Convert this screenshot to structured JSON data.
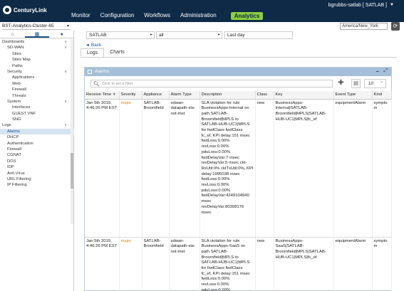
{
  "header": {
    "brand": "CenturyLink",
    "nav": [
      "Monitor",
      "Configuration",
      "Workflows",
      "Administration"
    ],
    "nav_active": "Analytics",
    "user": "bgrubbs-satlab [ SATLAB ]",
    "accent_color": "#8ccd3f",
    "bar_color": "#0f2a47"
  },
  "cluster": "BST-Analytics-Cluster-65",
  "timezone": "America/New_York",
  "sidebar": {
    "tabs": [
      "home-icon",
      "devices-icon",
      "user-icon"
    ],
    "items": [
      {
        "label": "Dashboards",
        "kind": "group",
        "caret": "∨"
      },
      {
        "label": "SD-WAN",
        "kind": "level2",
        "caret": "∨"
      },
      {
        "label": "Sites",
        "kind": "sub"
      },
      {
        "label": "Sites Map",
        "kind": "sub"
      },
      {
        "label": "Paths",
        "kind": "sub"
      },
      {
        "label": "Security",
        "kind": "level2",
        "caret": "∨"
      },
      {
        "label": "Applications",
        "kind": "sub"
      },
      {
        "label": "Web",
        "kind": "sub"
      },
      {
        "label": "Firewall",
        "kind": "sub"
      },
      {
        "label": "Threats",
        "kind": "sub"
      },
      {
        "label": "System",
        "kind": "level2",
        "caret": "∨"
      },
      {
        "label": "Interfaces",
        "kind": "sub"
      },
      {
        "label": "GUEST VNF",
        "kind": "sub"
      },
      {
        "label": "SNG",
        "kind": "sub"
      },
      {
        "label": "Logs",
        "kind": "group",
        "caret": "∨"
      },
      {
        "label": "Alarms",
        "kind": "level2",
        "selected": true
      },
      {
        "label": "DHCP",
        "kind": "level2"
      },
      {
        "label": "Authentication",
        "kind": "level2"
      },
      {
        "label": "Firewall",
        "kind": "level2"
      },
      {
        "label": "CGNAT",
        "kind": "level2"
      },
      {
        "label": "DOS",
        "kind": "level2"
      },
      {
        "label": "IDP",
        "kind": "level2"
      },
      {
        "label": "Anti Virus",
        "kind": "level2"
      },
      {
        "label": "URL Filtering",
        "kind": "level2"
      },
      {
        "label": "IP Filtering",
        "kind": "level2"
      }
    ]
  },
  "filters": {
    "tenant": "SATLAB",
    "scope": "all",
    "range": "Last day"
  },
  "back_label": "Back",
  "tabs": [
    "Logs",
    "Charts"
  ],
  "panel": {
    "title": "Alarms",
    "search_placeholder": "Click to set a filter",
    "page_size": "10"
  },
  "table": {
    "columns": [
      "Receive Time",
      "Severity",
      "Appliance",
      "Alarm Type",
      "Description",
      "Class",
      "Key",
      "Event Type",
      "Kind"
    ],
    "rows": [
      {
        "receive_time": "Jan 5th 2019, 4:46:26 PM EST",
        "severity": "major",
        "appliance": "SATLAB-Broomfield",
        "alarm_type": "sdwan-datapath-sla-not-met",
        "description": "SLA violation for rule BusinessApps-Internal on path SATLAB-Broomfield|MPLS to SATLAB-HUB-UC1|MPLS for fwdClass fwdClass fc_ef, KPI delay:151 msec fwdLoss:0.00% revLoss:0.00% pduLoss:0.00% fwdDelayVar:7 msec revDelayVar:5 msec ckt­RxUtil:0% ckt­TxUtil:0%, KPI delay:1995038 msec fwdLoss:0.00% revLoss:0.00% pduLoss:0.00% fwdDelayVar:4249104940 msec revDelayVar:80398176 msec",
        "class": "new",
        "key": "BusinessApps-Internal|SATLAB-Broomfield|MPLS|SATLAB-HUB-UC1|MPLS|fc_ef",
        "event_type": "equipmentAlarm",
        "kind": "symptom"
      },
      {
        "receive_time": "Jan 5th 2019, 4:46:26 PM EST",
        "severity": "major",
        "appliance": "SATLAB-Broomfield",
        "alarm_type": "sdwan-datapath-sla-not-met",
        "description": "SLA violation for rule BusinessApps-SaaS on path SATLAB-Broomfield|MPLS to SATLAB-HUB-UC1|MPLS for fwdClass fwdClass fc_ef, KPI delay:151 msec fwdLoss:0.00% revLoss:0.00% pduLoss:0.00%",
        "class": "new",
        "key": "BusinessApps-SaaS|SATLAB-Broomfield|MPLS|SATLAB-HUB-UC1|MPLS|fc_ef",
        "event_type": "equipmentAlarm",
        "kind": "symptom"
      }
    ]
  }
}
